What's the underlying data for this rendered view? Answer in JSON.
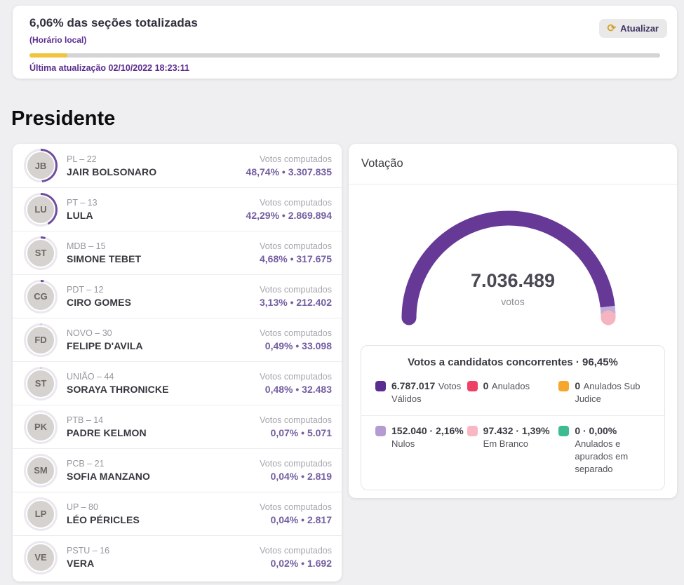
{
  "colors": {
    "ring": "#6f4d9e",
    "ring_track": "#eae7ef",
    "progress_fill": "#f0c43c",
    "progress_track": "#d4d4d6"
  },
  "header": {
    "title": "6,06% das seções totalizadas",
    "subtitle": "(Horário local)",
    "refresh_label": "Atualizar",
    "refresh_icon": "⟳",
    "progress_pct": 6.06,
    "last_update": "Última atualização 02/10/2022 18:23:11"
  },
  "page_title": "Presidente",
  "votes_label": "Votos computados",
  "value_sep": "•",
  "candidates": [
    {
      "party": "PL – 22",
      "name": "JAIR BOLSONARO",
      "pct": "48,74%",
      "votes": "3.307.835",
      "pct_num": 48.74,
      "initials": "JB"
    },
    {
      "party": "PT – 13",
      "name": "LULA",
      "pct": "42,29%",
      "votes": "2.869.894",
      "pct_num": 42.29,
      "initials": "LU"
    },
    {
      "party": "MDB – 15",
      "name": "SIMONE TEBET",
      "pct": "4,68%",
      "votes": "317.675",
      "pct_num": 4.68,
      "initials": "ST"
    },
    {
      "party": "PDT – 12",
      "name": "CIRO GOMES",
      "pct": "3,13%",
      "votes": "212.402",
      "pct_num": 3.13,
      "initials": "CG"
    },
    {
      "party": "NOVO – 30",
      "name": "FELIPE D'AVILA",
      "pct": "0,49%",
      "votes": "33.098",
      "pct_num": 0.49,
      "initials": "FD"
    },
    {
      "party": "UNIÃO – 44",
      "name": "SORAYA THRONICKE",
      "pct": "0,48%",
      "votes": "32.483",
      "pct_num": 0.48,
      "initials": "ST"
    },
    {
      "party": "PTB – 14",
      "name": "PADRE KELMON",
      "pct": "0,07%",
      "votes": "5.071",
      "pct_num": 0.07,
      "initials": "PK"
    },
    {
      "party": "PCB – 21",
      "name": "SOFIA MANZANO",
      "pct": "0,04%",
      "votes": "2.819",
      "pct_num": 0.04,
      "initials": "SM"
    },
    {
      "party": "UP – 80",
      "name": "LÉO PÉRICLES",
      "pct": "0,04%",
      "votes": "2.817",
      "pct_num": 0.04,
      "initials": "LP"
    },
    {
      "party": "PSTU – 16",
      "name": "VERA",
      "pct": "0,02%",
      "votes": "1.692",
      "pct_num": 0.02,
      "initials": "VE"
    }
  ],
  "votacao": {
    "title": "Votação",
    "total": "7.036.489",
    "unit": "votos",
    "gauge_segments": [
      {
        "name": "validos",
        "pct_num": 96.45,
        "color": "#663997"
      },
      {
        "name": "nulos",
        "pct_num": 2.16,
        "color": "#c0aed8"
      },
      {
        "name": "em-branco",
        "pct_num": 1.39,
        "color": "#f6b3c0"
      }
    ],
    "legend_title": "Votos a candidatos concorrentes · 96,45%",
    "legend_row1": [
      {
        "color": "#5b2d90",
        "value": "6.787.017",
        "label": "Votos Válidos"
      },
      {
        "color": "#ef4166",
        "value": "0",
        "label": "Anulados"
      },
      {
        "color": "#f5a62b",
        "value": "0",
        "label": "Anulados Sub Judice"
      }
    ],
    "legend_row2": [
      {
        "color": "#b49cd3",
        "value": "152.040 · 2,16%",
        "label": "Nulos"
      },
      {
        "color": "#f8b7c3",
        "value": "97.432 · 1,39%",
        "label": "Em Branco"
      },
      {
        "color": "#3dbb93",
        "value": "0 · 0,00%",
        "label": "Anulados e apurados em separado"
      }
    ]
  }
}
